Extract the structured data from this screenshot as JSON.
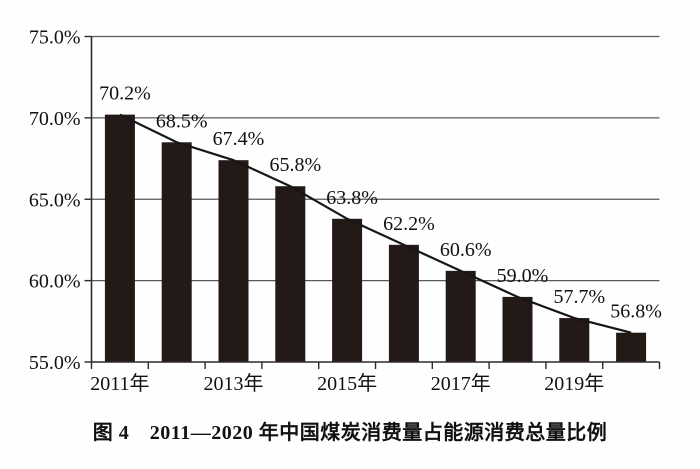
{
  "figure": {
    "caption": "图 4　2011—2020 年中国煤炭消费量占能源消费总量比例"
  },
  "chart_data": {
    "type": "bar",
    "title": "图 4　2011—2020 年中国煤炭消费量占能源消费总量比例",
    "categories": [
      "2011",
      "2012",
      "2013",
      "2014",
      "2015",
      "2016",
      "2017",
      "2018",
      "2019",
      "2020"
    ],
    "values": [
      70.2,
      68.5,
      67.4,
      65.8,
      63.8,
      62.2,
      60.6,
      59.0,
      57.7,
      56.8
    ],
    "data_labels": [
      "70.2%",
      "68.5%",
      "67.4%",
      "65.8%",
      "63.8%",
      "62.2%",
      "60.6%",
      "59.0%",
      "57.7%",
      "56.8%"
    ],
    "x_tick_labels": [
      "2011年",
      "2013年",
      "2015年",
      "2017年",
      "2019年"
    ],
    "x_tick_bar_indices": [
      0,
      2,
      4,
      6,
      8
    ],
    "y_tick_labels": [
      "55.0%",
      "60.0%",
      "65.0%",
      "70.0%",
      "75.0%"
    ],
    "y_tick_values": [
      55,
      60,
      65,
      70,
      75
    ],
    "ylim": [
      55,
      75
    ],
    "grid": true,
    "legend": "none",
    "trend_line": true,
    "xlabel": "",
    "ylabel": "",
    "colors": {
      "bar": "#231916",
      "trend_line": "#161616",
      "grid_line": "#595959",
      "axis_line": "#2e2a28",
      "text": "#111111"
    }
  }
}
